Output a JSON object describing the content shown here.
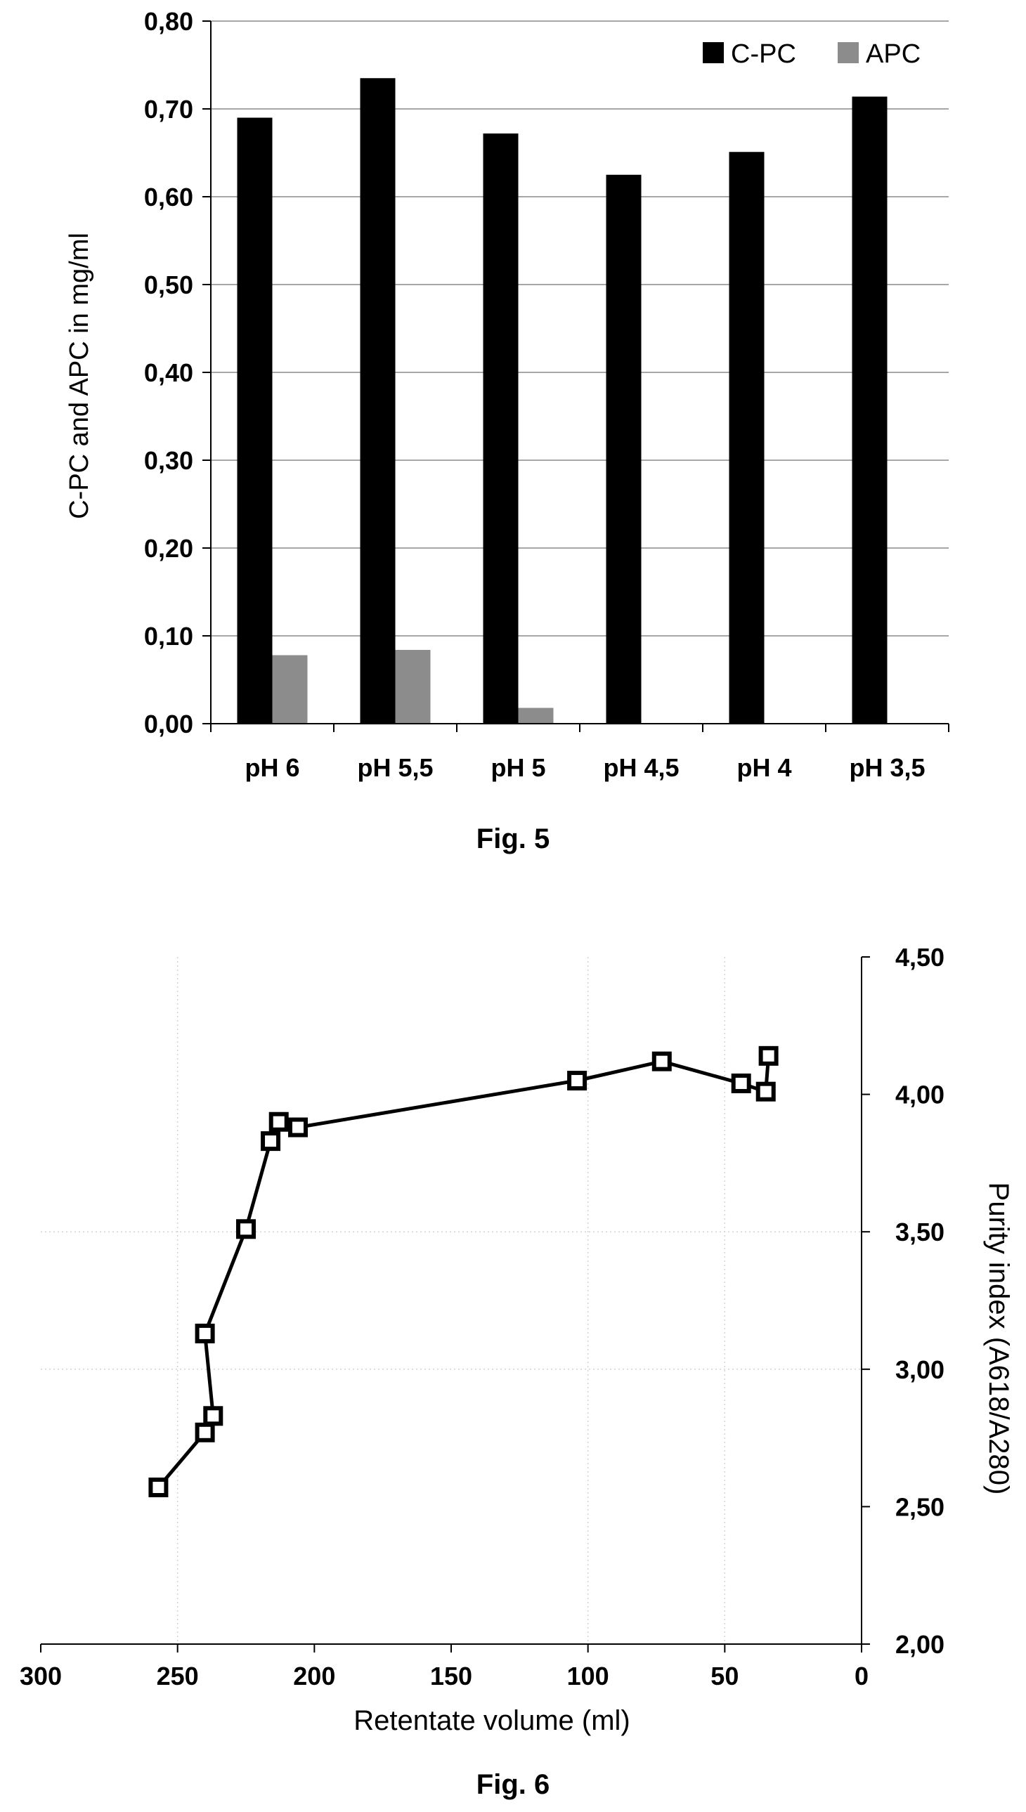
{
  "chart_data": [
    {
      "type": "bar",
      "caption": "Fig. 5",
      "categories": [
        "pH 6",
        "pH 5,5",
        "pH 5",
        "pH 4,5",
        "pH 4",
        "pH 3,5"
      ],
      "series": [
        {
          "name": "C-PC",
          "color": "#000000",
          "values": [
            0.69,
            0.735,
            0.672,
            0.625,
            0.651,
            0.714
          ]
        },
        {
          "name": "APC",
          "color": "#8c8c8c",
          "values": [
            0.078,
            0.084,
            0.018,
            0,
            0,
            0
          ]
        }
      ],
      "title": "",
      "xlabel": "",
      "ylabel": "C-PC and APC in mg/ml",
      "ylim": [
        0,
        0.8
      ],
      "yticks": [
        "0,00",
        "0,10",
        "0,20",
        "0,30",
        "0,40",
        "0,50",
        "0,60",
        "0,70",
        "0,80"
      ],
      "grid": true,
      "legend": "top-right"
    },
    {
      "type": "line",
      "caption": "Fig. 6",
      "title": "",
      "xlabel": "Retentate volume (ml)",
      "ylabel": "Purity index (A618/A280)",
      "xlim": [
        300,
        0
      ],
      "ylim": [
        2,
        4.5
      ],
      "xticks": [
        "300",
        "250",
        "200",
        "150",
        "100",
        "50",
        "0"
      ],
      "yticks": [
        "2,00",
        "2,50",
        "3,00",
        "3,50",
        "4,00",
        "4,50"
      ],
      "y_axis_side": "right",
      "marker": "square",
      "series": [
        {
          "name": "",
          "points": [
            [
              257,
              2.57
            ],
            [
              240,
              2.77
            ],
            [
              237,
              2.83
            ],
            [
              240,
              3.13
            ],
            [
              225,
              3.51
            ],
            [
              216,
              3.83
            ],
            [
              213,
              3.9
            ],
            [
              206,
              3.88
            ],
            [
              104,
              4.05
            ],
            [
              73,
              4.12
            ],
            [
              44,
              4.04
            ],
            [
              35,
              4.01
            ],
            [
              34,
              4.14
            ]
          ]
        }
      ]
    }
  ]
}
